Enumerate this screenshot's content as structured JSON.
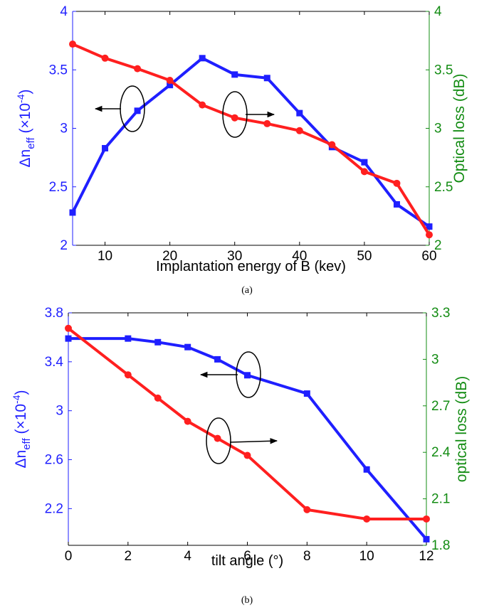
{
  "colors": {
    "left_axis": "#1f1fff",
    "right_axis": "#138c13",
    "series_blue": "#1f1fff",
    "series_red": "#ff1f1f"
  },
  "chart_data": [
    {
      "type": "line",
      "caption": "(a)",
      "xlabel": "Implantation energy of B (kev)",
      "ylabel_left": {
        "prefix": "Δn",
        "sub": "eff",
        "mid": " (×10",
        "sup": "-4",
        "suffix": ")"
      },
      "ylabel_right": "Optical loss (dB)",
      "xlim": [
        5,
        60
      ],
      "ylim_left": [
        2,
        4
      ],
      "ylim_right": [
        2,
        4
      ],
      "xticks": [
        10,
        20,
        30,
        40,
        50,
        60
      ],
      "yticks_left": [
        "2",
        "2.5",
        "3",
        "3.5",
        "4"
      ],
      "yticks_right": [
        "2",
        "2.5",
        "3",
        "3.5",
        "4"
      ],
      "series": [
        {
          "axis": "left",
          "color": "#1f1fff",
          "marker": "square",
          "x": [
            5,
            10,
            15,
            20,
            25,
            30,
            35,
            40,
            45,
            50,
            55,
            60
          ],
          "values": [
            2.28,
            2.83,
            3.15,
            3.37,
            3.6,
            3.46,
            3.43,
            3.13,
            2.84,
            2.71,
            2.35,
            2.16
          ]
        },
        {
          "axis": "right",
          "color": "#ff1f1f",
          "marker": "circle",
          "x": [
            5,
            10,
            15,
            20,
            25,
            30,
            35,
            40,
            45,
            50,
            55,
            60
          ],
          "values": [
            3.72,
            3.6,
            3.51,
            3.41,
            3.2,
            3.09,
            3.04,
            2.98,
            2.86,
            2.63,
            2.53,
            2.09
          ]
        }
      ]
    },
    {
      "type": "line",
      "caption": "(b)",
      "xlabel": "tilt angle (°)",
      "ylabel_left": {
        "prefix": "Δn",
        "sub": "eff",
        "mid": " (×10",
        "sup": "-4",
        "suffix": ")"
      },
      "ylabel_right": "optical loss (dB)",
      "xlim": [
        0,
        12
      ],
      "ylim_left": [
        1.9,
        3.8
      ],
      "ylim_right": [
        1.8,
        3.3
      ],
      "xticks": [
        0,
        2,
        4,
        6,
        8,
        10,
        12
      ],
      "yticks_left": [
        "2.2",
        "2.6",
        "3",
        "3.4",
        "3.8"
      ],
      "yticks_right": [
        "1.8",
        "2.1",
        "2.4",
        "2.7",
        "3",
        "3.3"
      ],
      "series": [
        {
          "axis": "left",
          "color": "#1f1fff",
          "marker": "square",
          "x": [
            0,
            2,
            3,
            4,
            5,
            6,
            8,
            10,
            12
          ],
          "values": [
            3.59,
            3.59,
            3.56,
            3.52,
            3.42,
            3.29,
            3.14,
            2.52,
            1.95
          ]
        },
        {
          "axis": "right",
          "color": "#ff1f1f",
          "marker": "circle",
          "x": [
            0,
            2,
            3,
            4,
            5,
            6,
            8,
            10,
            12
          ],
          "values": [
            3.2,
            2.9,
            2.75,
            2.6,
            2.49,
            2.38,
            2.03,
            1.97,
            1.97
          ]
        }
      ]
    }
  ]
}
